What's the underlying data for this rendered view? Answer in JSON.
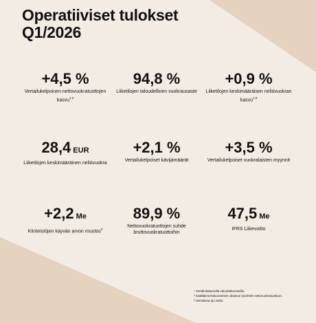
{
  "header": {
    "title_lines": [
      "Operatiiviset tulokset",
      "Q1/2026"
    ]
  },
  "kpis": [
    {
      "value": "+4,5 %",
      "label": "Vertailukelpoinen nettovuokratuottojen kasvu",
      "note": "1,2"
    },
    {
      "value": "94,8 %",
      "label": "Liiketilojen taloudellinen vuokrausaste"
    },
    {
      "value": "+0,9 %",
      "label": "Liiketilojen keskimääräisen neliövuokran kasvu",
      "note": "1,3"
    },
    {
      "value": "28,4",
      "unit": "EUR",
      "label": "Liiketilojen keskimääräinen neliövuokra"
    },
    {
      "value": "+2,1 %",
      "label": "Vertailukelpoiset kävijämäärät"
    },
    {
      "value": "+3,5 %",
      "label": "Vertailukelpoiset vuokralaisten myynnit"
    },
    {
      "value": "+2,2",
      "unit": "Me",
      "label": "Kiinteistöjen käyvän arvon muutos",
      "note": "3"
    },
    {
      "value": "89,9 %",
      "label": "Nettovuokratuottojen suhde bruttovuokratuottoihin"
    },
    {
      "value": "47,5",
      "unit": "Me",
      "label": "IFRS Liikevoitto"
    }
  ],
  "footnotes": [
    "¹ Vertailukelpoisilla valuuttakursseilla.",
    "² Sisältää kertaluonteisen oikaisun Q1/2025 nettovuokratuottoon.",
    "³ Verrattuna Q4 2025."
  ]
}
